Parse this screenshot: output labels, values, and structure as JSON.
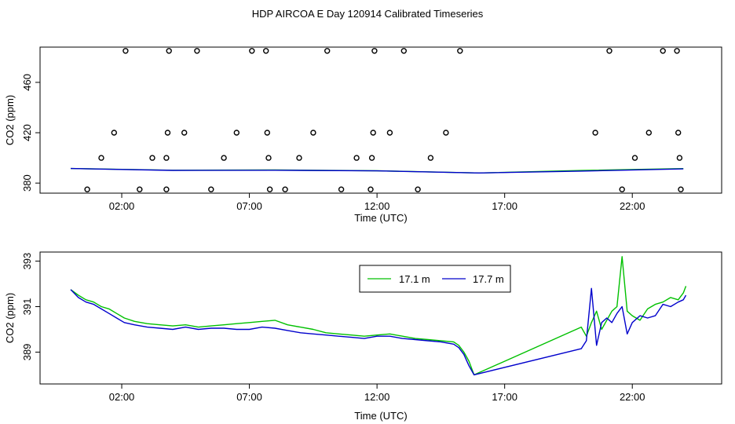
{
  "figure": {
    "title": "HDP AIRCOA E  Day 120914  Calibrated Timeseries"
  },
  "chart_data": [
    {
      "type": "scatter",
      "xlabel": "Time (UTC)",
      "ylabel": "CO2 (ppm)",
      "x_unit": "hours UTC",
      "xlim": [
        -1.2,
        25.5
      ],
      "ylim": [
        372,
        488
      ],
      "xticks": [
        {
          "value": 2,
          "label": "02:00"
        },
        {
          "value": 7,
          "label": "07:00"
        },
        {
          "value": 12,
          "label": "12:00"
        },
        {
          "value": 17,
          "label": "17:00"
        },
        {
          "value": 22,
          "label": "22:00"
        }
      ],
      "yticks": [
        {
          "value": 380,
          "label": "380"
        },
        {
          "value": 420,
          "label": "420"
        },
        {
          "value": 460,
          "label": "460"
        }
      ],
      "points": [
        [
          0.65,
          375
        ],
        [
          1.2,
          400
        ],
        [
          1.7,
          420
        ],
        [
          2.15,
          485
        ],
        [
          2.7,
          375
        ],
        [
          3.2,
          400
        ],
        [
          3.75,
          400
        ],
        [
          3.8,
          420
        ],
        [
          3.85,
          485
        ],
        [
          3.75,
          375
        ],
        [
          4.45,
          420
        ],
        [
          4.95,
          485
        ],
        [
          5.5,
          375
        ],
        [
          6.0,
          400
        ],
        [
          6.5,
          420
        ],
        [
          7.1,
          485
        ],
        [
          7.65,
          485
        ],
        [
          7.7,
          420
        ],
        [
          7.75,
          400
        ],
        [
          7.8,
          375
        ],
        [
          8.4,
          375
        ],
        [
          8.95,
          400
        ],
        [
          9.5,
          420
        ],
        [
          10.05,
          485
        ],
        [
          10.6,
          375
        ],
        [
          11.2,
          400
        ],
        [
          11.8,
          400
        ],
        [
          11.85,
          420
        ],
        [
          11.9,
          485
        ],
        [
          11.75,
          375
        ],
        [
          12.5,
          420
        ],
        [
          13.05,
          485
        ],
        [
          13.6,
          375
        ],
        [
          14.1,
          400
        ],
        [
          14.7,
          420
        ],
        [
          15.25,
          485
        ],
        [
          20.55,
          420
        ],
        [
          21.1,
          485
        ],
        [
          21.6,
          375
        ],
        [
          22.1,
          400
        ],
        [
          22.65,
          420
        ],
        [
          23.2,
          485
        ],
        [
          23.75,
          485
        ],
        [
          23.8,
          420
        ],
        [
          23.85,
          400
        ],
        [
          23.9,
          375
        ]
      ],
      "lines": [
        {
          "color": "#00c000",
          "x": [
            0,
            4,
            8,
            12,
            16,
            20,
            24
          ],
          "y": [
            391.6,
            390.2,
            390.4,
            389.8,
            388,
            390,
            391.5
          ]
        },
        {
          "color": "#0000cc",
          "x": [
            0,
            4,
            8,
            12,
            16,
            20,
            24
          ],
          "y": [
            391.6,
            390.1,
            390.2,
            389.7,
            388,
            389.5,
            391.3
          ]
        }
      ]
    },
    {
      "type": "line",
      "xlabel": "Time (UTC)",
      "ylabel": "CO2 (ppm)",
      "x_unit": "hours UTC",
      "xlim": [
        -1.2,
        25.5
      ],
      "ylim": [
        387.6,
        393.4
      ],
      "xticks": [
        {
          "value": 2,
          "label": "02:00"
        },
        {
          "value": 7,
          "label": "07:00"
        },
        {
          "value": 12,
          "label": "12:00"
        },
        {
          "value": 17,
          "label": "17:00"
        },
        {
          "value": 22,
          "label": "22:00"
        }
      ],
      "yticks": [
        {
          "value": 389,
          "label": "389"
        },
        {
          "value": 391,
          "label": "391"
        },
        {
          "value": 393,
          "label": "393"
        }
      ],
      "legend_position": "top-center",
      "series": [
        {
          "name": "17.1 m",
          "color": "#00c000",
          "x": [
            0,
            0.3,
            0.6,
            0.9,
            1.2,
            1.5,
            1.8,
            2.1,
            2.5,
            3.0,
            3.5,
            4.0,
            4.5,
            5.0,
            5.5,
            6.0,
            6.5,
            7.0,
            7.5,
            8.0,
            8.5,
            9.0,
            9.5,
            10.0,
            10.5,
            11.0,
            11.5,
            12.0,
            12.5,
            13.0,
            13.5,
            14.0,
            14.5,
            15.0,
            15.2,
            15.4,
            15.6,
            15.8,
            20.0,
            20.2,
            20.4,
            20.6,
            20.8,
            21.0,
            21.2,
            21.4,
            21.6,
            21.8,
            22.0,
            22.3,
            22.6,
            22.9,
            23.2,
            23.5,
            23.8,
            24.0,
            24.1
          ],
          "y": [
            391.75,
            391.5,
            391.3,
            391.2,
            391.0,
            390.9,
            390.7,
            390.5,
            390.35,
            390.25,
            390.2,
            390.15,
            390.2,
            390.1,
            390.15,
            390.2,
            390.25,
            390.3,
            390.35,
            390.4,
            390.2,
            390.1,
            390.0,
            389.85,
            389.8,
            389.75,
            389.7,
            389.75,
            389.8,
            389.7,
            389.6,
            389.55,
            389.5,
            389.45,
            389.3,
            389.0,
            388.6,
            388.0,
            390.1,
            389.7,
            390.3,
            390.8,
            390.0,
            390.4,
            390.8,
            391.0,
            393.2,
            390.8,
            390.6,
            390.4,
            390.9,
            391.1,
            391.2,
            391.4,
            391.3,
            391.6,
            391.9
          ]
        },
        {
          "name": "17.7 m",
          "color": "#0000cc",
          "x": [
            0,
            0.3,
            0.6,
            0.9,
            1.2,
            1.5,
            1.8,
            2.1,
            2.5,
            3.0,
            3.5,
            4.0,
            4.5,
            5.0,
            5.5,
            6.0,
            6.5,
            7.0,
            7.5,
            8.0,
            8.5,
            9.0,
            9.5,
            10.0,
            10.5,
            11.0,
            11.5,
            12.0,
            12.5,
            13.0,
            13.5,
            14.0,
            14.5,
            15.0,
            15.2,
            15.4,
            15.6,
            15.8,
            20.0,
            20.2,
            20.4,
            20.6,
            20.8,
            21.0,
            21.2,
            21.4,
            21.6,
            21.8,
            22.0,
            22.3,
            22.6,
            22.9,
            23.2,
            23.5,
            23.8,
            24.0,
            24.1
          ],
          "y": [
            391.75,
            391.4,
            391.2,
            391.1,
            390.9,
            390.7,
            390.5,
            390.3,
            390.2,
            390.1,
            390.05,
            390.0,
            390.1,
            390.0,
            390.05,
            390.05,
            390.0,
            390.0,
            390.1,
            390.05,
            389.95,
            389.85,
            389.8,
            389.75,
            389.7,
            389.65,
            389.6,
            389.7,
            389.7,
            389.6,
            389.55,
            389.5,
            389.45,
            389.35,
            389.2,
            388.9,
            388.4,
            388.0,
            389.15,
            389.5,
            391.8,
            389.3,
            390.3,
            390.5,
            390.3,
            390.7,
            391.0,
            389.8,
            390.3,
            390.6,
            390.5,
            390.6,
            391.1,
            391.0,
            391.2,
            391.3,
            391.5
          ]
        }
      ]
    }
  ]
}
